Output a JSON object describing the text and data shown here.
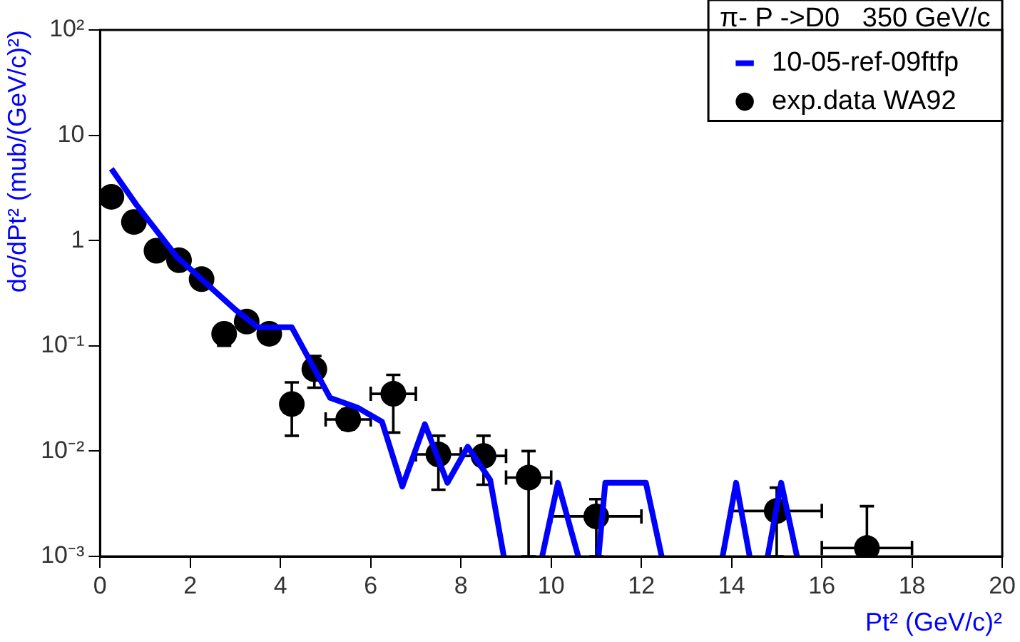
{
  "chart_data": {
    "type": "line",
    "xlabel": "Pt² (GeV/c)²",
    "ylabel": "dσ/dPt² (mub/(GeV/c)²)",
    "legend_title": "π- P ->D0   350 GeV/c",
    "legend": "top right",
    "log": "y",
    "grid": false,
    "xlim": [
      0,
      20
    ],
    "xticks": [
      0,
      2,
      4,
      6,
      8,
      10,
      12,
      14,
      16,
      18,
      20
    ],
    "ylim": [
      0.001,
      100
    ],
    "yticks": [
      {
        "value": 0.001,
        "label": "10⁻³"
      },
      {
        "value": 0.01,
        "label": "10⁻²"
      },
      {
        "value": 0.1,
        "label": "10⁻¹"
      },
      {
        "value": 1,
        "label": "1"
      },
      {
        "value": 10,
        "label": "10"
      },
      {
        "value": 100,
        "label": "10²"
      }
    ],
    "series": [
      {
        "name": "10-05-ref-09ftfp",
        "color": "#0000ff",
        "marker": "none",
        "line_style": "solid",
        "x": [
          0.25,
          0.8,
          1.7,
          3.0,
          3.5,
          4.25,
          5.1,
          5.7,
          6.25,
          6.7,
          7.2,
          7.7,
          8.15,
          8.65,
          8.95,
          9.4,
          9.8,
          10.15,
          10.6,
          10.8,
          11.05,
          11.2,
          12.1,
          12.45,
          13.0,
          13.8,
          14.1,
          14.4,
          14.6,
          14.8,
          15.1,
          15.45
        ],
        "values": [
          4.8,
          2.2,
          0.7,
          0.22,
          0.15,
          0.15,
          0.032,
          0.026,
          0.019,
          0.0046,
          0.018,
          0.005,
          0.011,
          0.0053,
          0.001,
          null,
          0.001,
          0.005,
          0.001,
          null,
          0.001,
          0.005,
          0.005,
          0.001,
          null,
          0.001,
          0.005,
          0.001,
          null,
          0.001,
          0.005,
          0.001
        ]
      },
      {
        "name": "exp.data WA92",
        "type": "scatter",
        "color": "#000000",
        "marker": "circle",
        "x": [
          0.25,
          0.75,
          1.25,
          1.75,
          2.25,
          2.75,
          3.25,
          3.75,
          4.25,
          4.75,
          5.5,
          6.5,
          7.5,
          8.5,
          9.5,
          11,
          15,
          17
        ],
        "values": [
          2.6,
          1.5,
          0.8,
          0.65,
          0.43,
          0.13,
          0.17,
          0.13,
          0.028,
          0.06,
          0.02,
          0.035,
          0.0093,
          0.009,
          0.0056,
          0.0024,
          0.0027,
          0.0012
        ],
        "errors": [
          null,
          null,
          null,
          null,
          null,
          [
            0.1,
            0.16
          ],
          null,
          null,
          [
            0.014,
            0.045
          ],
          [
            0.04,
            0.08
          ],
          [
            0.016,
            0.025
          ],
          [
            0.015,
            0.053
          ],
          [
            0.0043,
            0.014
          ],
          [
            0.0048,
            0.014
          ],
          [
            0.001,
            0.01
          ],
          [
            0.001,
            0.0035
          ],
          [
            0.001,
            0.0045
          ],
          [
            0.001,
            0.003
          ]
        ],
        "xerrors": [
          null,
          null,
          null,
          null,
          null,
          null,
          null,
          null,
          null,
          null,
          0.5,
          0.5,
          0.5,
          0.5,
          0.5,
          1,
          1,
          1
        ]
      }
    ]
  }
}
